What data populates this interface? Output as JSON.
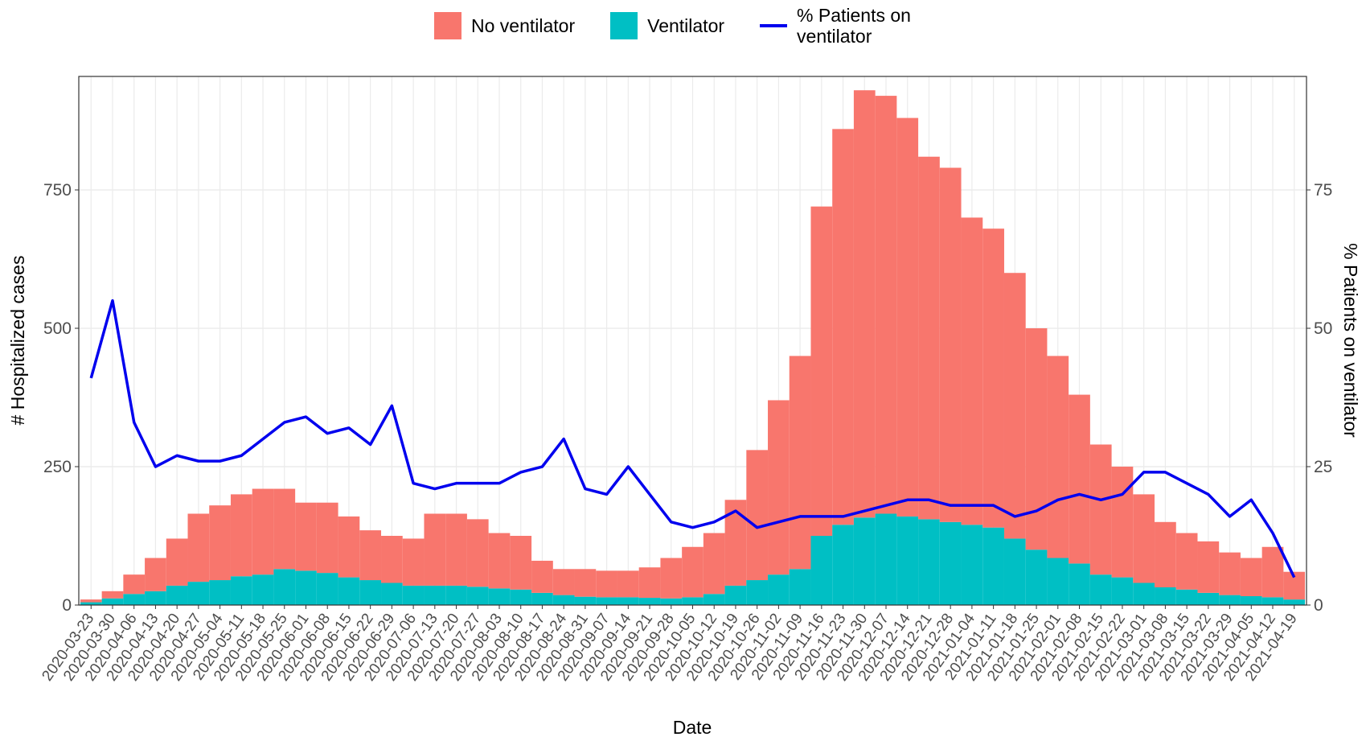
{
  "chart_data": {
    "type": "stacked-bar-line",
    "x_label": "Date",
    "y_label": "# Hospitalized cases",
    "y2_label": "% Patients on ventilator",
    "x": [
      "2020-03-23",
      "2020-03-30",
      "2020-04-06",
      "2020-04-13",
      "2020-04-20",
      "2020-04-27",
      "2020-05-04",
      "2020-05-11",
      "2020-05-18",
      "2020-05-25",
      "2020-06-01",
      "2020-06-08",
      "2020-06-15",
      "2020-06-22",
      "2020-06-29",
      "2020-07-06",
      "2020-07-13",
      "2020-07-20",
      "2020-07-27",
      "2020-08-03",
      "2020-08-10",
      "2020-08-17",
      "2020-08-24",
      "2020-08-31",
      "2020-09-07",
      "2020-09-14",
      "2020-09-21",
      "2020-09-28",
      "2020-10-05",
      "2020-10-12",
      "2020-10-19",
      "2020-10-26",
      "2020-11-02",
      "2020-11-09",
      "2020-11-16",
      "2020-11-23",
      "2020-11-30",
      "2020-12-07",
      "2020-12-14",
      "2020-12-21",
      "2020-12-28",
      "2021-01-04",
      "2021-01-11",
      "2021-01-18",
      "2021-01-25",
      "2021-02-01",
      "2021-02-08",
      "2021-02-15",
      "2021-02-22",
      "2021-03-01",
      "2021-03-08",
      "2021-03-15",
      "2021-03-22",
      "2021-03-29",
      "2021-04-05",
      "2021-04-12",
      "2021-04-19"
    ],
    "series": [
      {
        "name": "No ventilator",
        "color": "#f8766d",
        "values": [
          5,
          13,
          35,
          60,
          85,
          123,
          135,
          148,
          155,
          145,
          123,
          127,
          110,
          90,
          85,
          85,
          130,
          130,
          122,
          100,
          97,
          58,
          47,
          50,
          48,
          48,
          55,
          73,
          91,
          110,
          155,
          235,
          315,
          385,
          595,
          715,
          772,
          755,
          720,
          655,
          640,
          555,
          540,
          480,
          400,
          365,
          305,
          235,
          200,
          160,
          118,
          102,
          93,
          77,
          69,
          91,
          50
        ]
      },
      {
        "name": "Ventilator",
        "color": "#00bfc4",
        "values": [
          5,
          12,
          20,
          25,
          35,
          42,
          45,
          52,
          55,
          65,
          62,
          58,
          50,
          45,
          40,
          35,
          35,
          35,
          33,
          30,
          28,
          22,
          18,
          15,
          14,
          14,
          13,
          12,
          14,
          20,
          35,
          45,
          55,
          65,
          125,
          145,
          158,
          165,
          160,
          155,
          150,
          145,
          140,
          120,
          100,
          85,
          75,
          55,
          50,
          40,
          32,
          28,
          22,
          18,
          16,
          14,
          10
        ]
      },
      {
        "name": "% Patients on ventilator",
        "color": "#0000ee",
        "axis": "y2",
        "values": [
          41,
          55,
          33,
          25,
          27,
          26,
          26,
          27,
          30,
          33,
          34,
          31,
          32,
          29,
          36,
          22,
          21,
          22,
          22,
          22,
          24,
          25,
          30,
          21,
          20,
          25,
          20,
          15,
          14,
          15,
          17,
          14,
          15,
          16,
          16,
          16,
          17,
          18,
          19,
          19,
          18,
          18,
          18,
          16,
          17,
          19,
          20,
          19,
          20,
          24,
          24,
          22,
          20,
          16,
          19,
          13,
          5
        ]
      }
    ],
    "xlim": [
      "2020-03-19",
      "2021-04-23"
    ],
    "xticks": [
      "2020-03-23",
      "2020-03-30",
      "2020-04-06",
      "2020-04-13",
      "2020-04-20",
      "2020-04-27",
      "2020-05-04",
      "2020-05-11",
      "2020-05-18",
      "2020-05-25",
      "2020-06-01",
      "2020-06-08",
      "2020-06-15",
      "2020-06-22",
      "2020-06-29",
      "2020-07-06",
      "2020-07-13",
      "2020-07-20",
      "2020-07-27",
      "2020-08-03",
      "2020-08-10",
      "2020-08-17",
      "2020-08-24",
      "2020-08-31",
      "2020-09-07",
      "2020-09-14",
      "2020-09-21",
      "2020-09-28",
      "2020-10-05",
      "2020-10-12",
      "2020-10-19",
      "2020-10-26",
      "2020-11-02",
      "2020-11-09",
      "2020-11-16",
      "2020-11-23",
      "2020-11-30",
      "2020-12-07",
      "2020-12-14",
      "2020-12-21",
      "2020-12-28",
      "2021-01-04",
      "2021-01-11",
      "2021-01-18",
      "2021-01-25",
      "2021-02-01",
      "2021-02-08",
      "2021-02-15",
      "2021-02-22",
      "2021-03-01",
      "2021-03-08",
      "2021-03-15",
      "2021-03-22",
      "2021-03-29",
      "2021-04-05",
      "2021-04-12",
      "2021-04-19"
    ],
    "ylim": [
      0,
      955
    ],
    "yticks": [
      0,
      250,
      500,
      750
    ],
    "y2lim": [
      0,
      95.5
    ],
    "y2ticks": [
      0,
      25,
      50,
      75
    ],
    "grid": true
  }
}
